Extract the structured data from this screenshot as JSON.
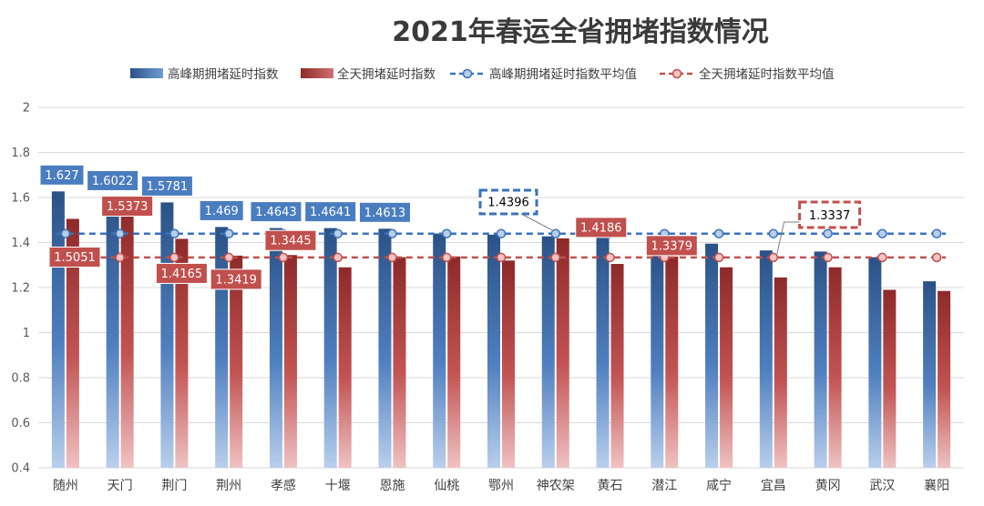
{
  "chart_data": {
    "type": "bar",
    "title": "2021年春运全省拥堵指数情况",
    "categories": [
      "随州",
      "天门",
      "荆门",
      "荆州",
      "孝感",
      "十堰",
      "恩施",
      "仙桃",
      "鄂州",
      "神农架",
      "黄石",
      "潜江",
      "咸宁",
      "宜昌",
      "黄冈",
      "武汉",
      "襄阳"
    ],
    "series": [
      {
        "name": "高峰期拥堵延时指数",
        "color": "#2e5a94",
        "values": [
          1.627,
          1.6022,
          1.5781,
          1.469,
          1.4643,
          1.4641,
          1.4613,
          1.44,
          1.435,
          1.4275,
          1.43,
          1.365,
          1.395,
          1.365,
          1.36,
          1.335,
          1.228
        ]
      },
      {
        "name": "全天拥堵延时指数",
        "color": "#a83a3a",
        "values": [
          1.5051,
          1.5373,
          1.4165,
          1.3419,
          1.3445,
          1.29,
          1.335,
          1.338,
          1.32,
          1.4186,
          1.305,
          1.3379,
          1.29,
          1.245,
          1.29,
          1.19,
          1.185
        ]
      }
    ],
    "averages": [
      {
        "name": "高峰期拥堵延时指数平均值",
        "value": 1.4396,
        "color": "#3b73b9"
      },
      {
        "name": "全天拥堵延时指数平均值",
        "value": 1.3337,
        "color": "#c0504d"
      }
    ],
    "ylim": [
      0.4,
      2
    ],
    "yticks": [
      "0.4",
      "0.6",
      "0.8",
      "1",
      "1.2",
      "1.4",
      "1.6",
      "1.8",
      "2"
    ],
    "grid": true,
    "legend": "top",
    "data_labels": {
      "peak": [
        {
          "index": 0,
          "text": "1.627"
        },
        {
          "index": 1,
          "text": "1.6022"
        },
        {
          "index": 2,
          "text": "1.5781"
        },
        {
          "index": 3,
          "text": "1.469"
        },
        {
          "index": 4,
          "text": "1.4643"
        },
        {
          "index": 5,
          "text": "1.4641"
        },
        {
          "index": 6,
          "text": "1.4613"
        }
      ],
      "allday": [
        {
          "index": 0,
          "text": "1.5051"
        },
        {
          "index": 1,
          "text": "1.5373"
        },
        {
          "index": 2,
          "text": "1.4165"
        },
        {
          "index": 3,
          "text": "1.3419"
        },
        {
          "index": 4,
          "text": "1.3445"
        },
        {
          "index": 9,
          "text": "1.4186"
        },
        {
          "index": 11,
          "text": "1.3379"
        }
      ],
      "peak_avg_label": "1.4396",
      "allday_avg_label": "1.3337"
    }
  }
}
